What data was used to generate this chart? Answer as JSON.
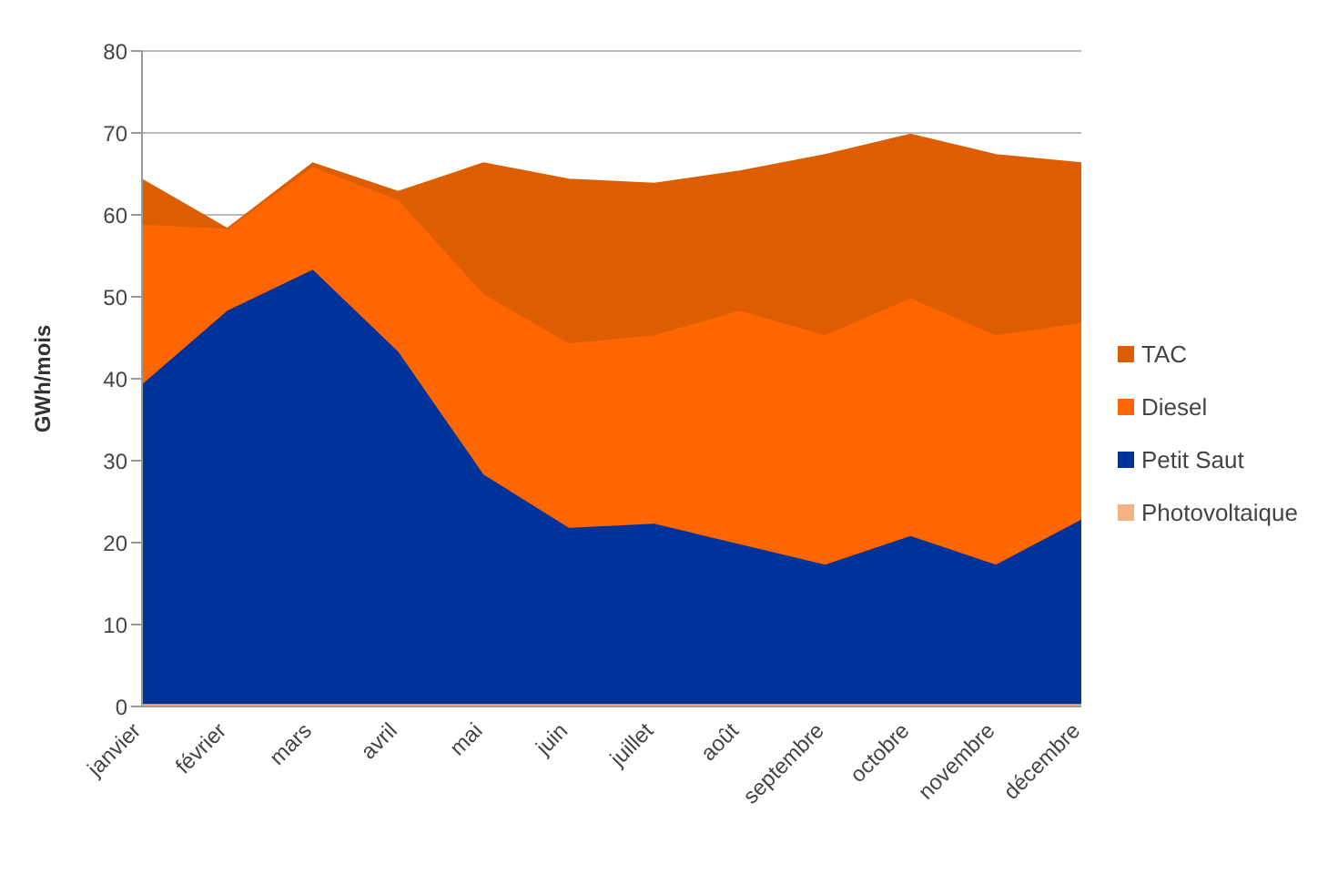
{
  "chart_data": {
    "type": "area",
    "stacked": true,
    "ylabel": "GWh/mois",
    "categories": [
      "janvier",
      "février",
      "mars",
      "avril",
      "mai",
      "juin",
      "juillet",
      "août",
      "septembre",
      "octobre",
      "novembre",
      "décembre"
    ],
    "series": [
      {
        "name": "Photovoltaique",
        "color": "#f4b183",
        "values": [
          0.3,
          0.3,
          0.3,
          0.3,
          0.3,
          0.3,
          0.3,
          0.3,
          0.3,
          0.3,
          0.3,
          0.3
        ]
      },
      {
        "name": "Petit Saut",
        "color": "#003399",
        "values": [
          39,
          48,
          53,
          43,
          28,
          21.5,
          22,
          19.5,
          17,
          20.5,
          17,
          22.5
        ]
      },
      {
        "name": "Diesel",
        "color": "#ff6600",
        "values": [
          19.5,
          10,
          12.5,
          18.5,
          22,
          22.5,
          23,
          28.5,
          28,
          29,
          28,
          24
        ]
      },
      {
        "name": "TAC",
        "color": "#dd5e00",
        "values": [
          5.5,
          0,
          0.5,
          1,
          16,
          20,
          18.5,
          17,
          22,
          20,
          22,
          19.5
        ]
      }
    ],
    "ylim": [
      0,
      80
    ],
    "yticks": [
      0,
      10,
      20,
      30,
      40,
      50,
      60,
      70,
      80
    ],
    "grid": "y",
    "legend": "right"
  }
}
